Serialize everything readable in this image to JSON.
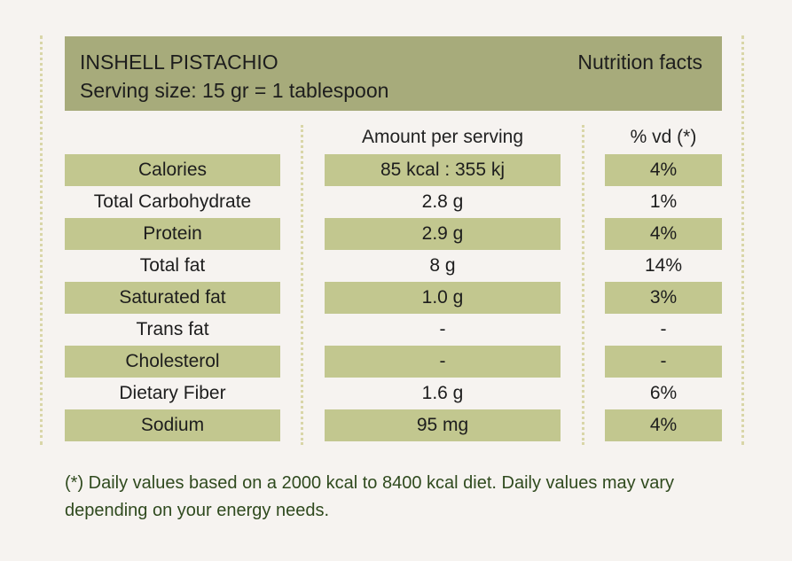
{
  "header": {
    "product": "INSHELL PISTACHIO",
    "serving": "Serving size: 15 gr = 1 tablespoon",
    "title": "Nutrition facts"
  },
  "columns": {
    "amount": "Amount per serving",
    "dv": "% vd (*)"
  },
  "rows": [
    {
      "nutrient": "Calories",
      "amount": "85 kcal : 355 kj",
      "dv": "4%"
    },
    {
      "nutrient": "Total Carbohydrate",
      "amount": "2.8 g",
      "dv": "1%"
    },
    {
      "nutrient": "Protein",
      "amount": "2.9 g",
      "dv": "4%"
    },
    {
      "nutrient": "Total fat",
      "amount": "8 g",
      "dv": "14%"
    },
    {
      "nutrient": "Saturated fat",
      "amount": "1.0 g",
      "dv": "3%"
    },
    {
      "nutrient": "Trans fat",
      "amount": "-",
      "dv": "-"
    },
    {
      "nutrient": "Cholesterol",
      "amount": "-",
      "dv": "-"
    },
    {
      "nutrient": "Dietary Fiber",
      "amount": "1.6 g",
      "dv": "6%"
    },
    {
      "nutrient": "Sodium",
      "amount": "95 mg",
      "dv": "4%"
    }
  ],
  "footnote": "(*) Daily values based on a 2000 kcal to 8400 kcal diet. Daily values may vary depending on your energy needs.",
  "colors": {
    "background": "#f6f3f0",
    "header": "#a7ab7b",
    "row_shade": "#c2c78f",
    "dots": "#d9d6a8",
    "footnote": "#2f4a1e"
  }
}
